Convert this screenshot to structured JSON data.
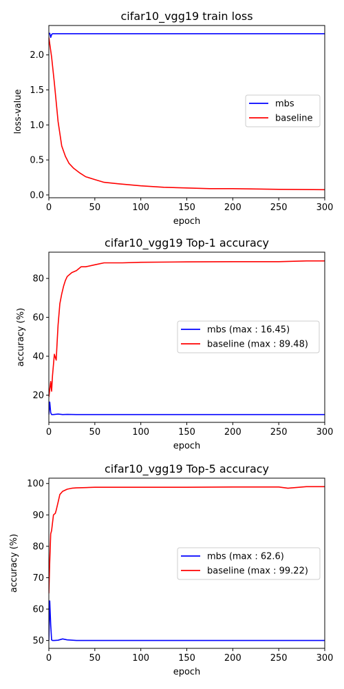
{
  "colors": {
    "mbs": "#0000ff",
    "baseline": "#ff0000"
  },
  "chart_data": [
    {
      "type": "line",
      "title": "cifar10_vgg19 train loss",
      "xlabel": "epoch",
      "ylabel": "loss-value",
      "xlim": [
        0,
        300
      ],
      "ylim": [
        -0.04,
        2.42
      ],
      "xticks": [
        0,
        50,
        100,
        150,
        200,
        250,
        300
      ],
      "xtick_labels": [
        "0",
        "50",
        "100",
        "150",
        "200",
        "250",
        "300"
      ],
      "yticks": [
        0.0,
        0.5,
        1.0,
        1.5,
        2.0
      ],
      "ytick_labels": [
        "0.0",
        "0.5",
        "1.0",
        "1.5",
        "2.0"
      ],
      "grid": false,
      "legend_position": "right",
      "series": [
        {
          "name": "mbs",
          "color": "#0000ff",
          "x": [
            0,
            1,
            2,
            3,
            4,
            6,
            10,
            50,
            100,
            150,
            200,
            250,
            300
          ],
          "y": [
            2.3,
            2.31,
            2.25,
            2.29,
            2.303,
            2.303,
            2.303,
            2.303,
            2.303,
            2.303,
            2.303,
            2.303,
            2.303
          ]
        },
        {
          "name": "baseline",
          "color": "#ff0000",
          "x": [
            0,
            3,
            6,
            10,
            14,
            18,
            22,
            27,
            33,
            40,
            50,
            60,
            75,
            100,
            125,
            150,
            175,
            200,
            250,
            300
          ],
          "y": [
            2.25,
            1.97,
            1.6,
            1.05,
            0.7,
            0.55,
            0.45,
            0.38,
            0.32,
            0.26,
            0.22,
            0.18,
            0.16,
            0.13,
            0.11,
            0.1,
            0.09,
            0.09,
            0.08,
            0.075
          ]
        }
      ]
    },
    {
      "type": "line",
      "title": "cifar10_vgg19 Top-1 accuracy",
      "xlabel": "epoch",
      "ylabel": "accuracy (%)",
      "xlim": [
        0,
        300
      ],
      "ylim": [
        6.0,
        93.5
      ],
      "xticks": [
        0,
        50,
        100,
        150,
        200,
        250,
        300
      ],
      "xtick_labels": [
        "0",
        "50",
        "100",
        "150",
        "200",
        "250",
        "300"
      ],
      "yticks": [
        20,
        40,
        60,
        80
      ],
      "ytick_labels": [
        "20",
        "40",
        "60",
        "80"
      ],
      "grid": false,
      "legend_position": "right",
      "series": [
        {
          "name": "mbs (max : 16.45)",
          "color": "#0000ff",
          "x": [
            0,
            1,
            2,
            3,
            5,
            10,
            15,
            20,
            30,
            50,
            100,
            150,
            200,
            250,
            300
          ],
          "y": [
            10.0,
            16.45,
            11.0,
            10.0,
            10.0,
            10.3,
            10.0,
            10.1,
            10.0,
            10.0,
            10.0,
            10.0,
            10.0,
            10.0,
            10.0
          ]
        },
        {
          "name": "baseline (max : 89.48)",
          "color": "#ff0000",
          "x": [
            0,
            2,
            3,
            4,
            6,
            8,
            9,
            10,
            12,
            14,
            16,
            18,
            20,
            25,
            30,
            35,
            40,
            50,
            60,
            80,
            100,
            150,
            200,
            250,
            280,
            300
          ],
          "y": [
            19.0,
            27.0,
            22.0,
            30.0,
            41.0,
            38.0,
            47.0,
            56.0,
            67.0,
            72.0,
            76.0,
            79.0,
            81.0,
            83.0,
            84.0,
            86.0,
            86.0,
            87.0,
            88.0,
            88.0,
            88.3,
            88.5,
            88.6,
            88.6,
            89.0,
            89.0
          ]
        }
      ]
    },
    {
      "type": "line",
      "title": "cifar10_vgg19 Top-5 accuracy",
      "xlabel": "epoch",
      "ylabel": "accuracy (%)",
      "xlim": [
        0,
        300
      ],
      "ylim": [
        47.5,
        101.7
      ],
      "xticks": [
        0,
        50,
        100,
        150,
        200,
        250,
        300
      ],
      "xtick_labels": [
        "0",
        "50",
        "100",
        "150",
        "200",
        "250",
        "300"
      ],
      "yticks": [
        50,
        60,
        70,
        80,
        90,
        100
      ],
      "ytick_labels": [
        "50",
        "60",
        "70",
        "80",
        "90",
        "100"
      ],
      "grid": false,
      "legend_position": "right",
      "series": [
        {
          "name": "mbs (max : 62.6)",
          "color": "#0000ff",
          "x": [
            0,
            1,
            2,
            3,
            4,
            6,
            10,
            15,
            20,
            30,
            50,
            100,
            150,
            200,
            250,
            300
          ],
          "y": [
            50.0,
            62.6,
            55.0,
            50.2,
            50.0,
            50.0,
            50.1,
            50.5,
            50.2,
            50.0,
            50.0,
            50.0,
            50.0,
            50.0,
            50.0,
            50.0
          ]
        },
        {
          "name": "baseline (max : 99.22)",
          "color": "#ff0000",
          "x": [
            0,
            1,
            2,
            3,
            5,
            7,
            8,
            10,
            12,
            15,
            20,
            25,
            30,
            40,
            50,
            100,
            150,
            200,
            250,
            260,
            280,
            300
          ],
          "y": [
            65.0,
            75.0,
            84.0,
            85.0,
            90.0,
            90.5,
            91.5,
            94.0,
            96.5,
            97.5,
            98.2,
            98.5,
            98.6,
            98.7,
            98.8,
            98.8,
            98.8,
            98.9,
            98.9,
            98.5,
            99.0,
            99.0
          ]
        }
      ]
    }
  ]
}
